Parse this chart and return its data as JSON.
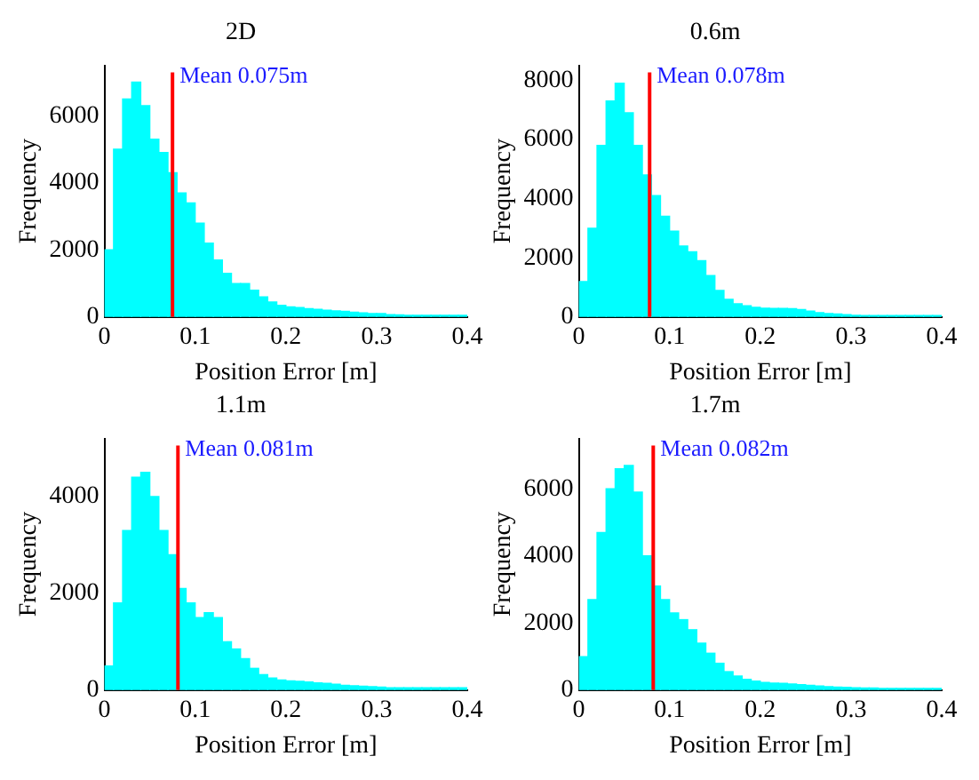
{
  "chart_data": [
    {
      "type": "histogram",
      "title": "2D",
      "xlabel": "Position Error [m]",
      "ylabel": "Frequency",
      "color": "#00ffff",
      "bins": [
        0,
        0.01,
        0.02,
        0.03,
        0.04,
        0.05,
        0.06,
        0.07,
        0.08,
        0.09,
        0.1,
        0.11,
        0.12,
        0.13,
        0.14,
        0.15,
        0.16,
        0.17,
        0.18,
        0.19,
        0.2,
        0.21,
        0.22,
        0.23,
        0.24,
        0.25,
        0.26,
        0.27,
        0.28,
        0.29,
        0.3,
        0.31,
        0.32,
        0.33,
        0.34,
        0.35,
        0.36,
        0.37,
        0.38,
        0.39,
        0.4
      ],
      "values": [
        2000,
        5000,
        6500,
        7000,
        6300,
        5300,
        4900,
        4300,
        3700,
        3400,
        2800,
        2200,
        1700,
        1300,
        1000,
        1000,
        800,
        600,
        450,
        350,
        300,
        280,
        250,
        230,
        200,
        180,
        170,
        140,
        120,
        100,
        100,
        70,
        60,
        50,
        50,
        50,
        50,
        50,
        50,
        50
      ],
      "xlim": [
        0,
        0.4
      ],
      "xticks": [
        0,
        0.1,
        0.2,
        0.3,
        0.4
      ],
      "ylim": [
        0,
        7500
      ],
      "yticks": [
        0,
        2000,
        4000,
        6000
      ],
      "grid": false,
      "legend": false,
      "ref_lines": [
        {
          "axis": "x",
          "value": 0.075,
          "label": "Mean 0.075m",
          "color": "#ff0000"
        }
      ]
    },
    {
      "type": "histogram",
      "title": "0.6m",
      "xlabel": "Position Error [m]",
      "ylabel": "Frequency",
      "color": "#00ffff",
      "bins": [
        0,
        0.01,
        0.02,
        0.03,
        0.04,
        0.05,
        0.06,
        0.07,
        0.08,
        0.09,
        0.1,
        0.11,
        0.12,
        0.13,
        0.14,
        0.15,
        0.16,
        0.17,
        0.18,
        0.19,
        0.2,
        0.21,
        0.22,
        0.23,
        0.24,
        0.25,
        0.26,
        0.27,
        0.28,
        0.29,
        0.3,
        0.31,
        0.32,
        0.33,
        0.34,
        0.35,
        0.36,
        0.37,
        0.38,
        0.39,
        0.4
      ],
      "values": [
        1200,
        3000,
        5800,
        7300,
        7900,
        6900,
        5800,
        4800,
        4100,
        3400,
        2900,
        2400,
        2200,
        1900,
        1400,
        900,
        600,
        450,
        380,
        330,
        300,
        290,
        290,
        280,
        250,
        200,
        150,
        120,
        100,
        80,
        60,
        50,
        50,
        50,
        50,
        50,
        50,
        50,
        50,
        50
      ],
      "xlim": [
        0,
        0.4
      ],
      "xticks": [
        0,
        0.1,
        0.2,
        0.3,
        0.4
      ],
      "ylim": [
        0,
        8500
      ],
      "yticks": [
        0,
        2000,
        4000,
        6000,
        8000
      ],
      "grid": false,
      "legend": false,
      "ref_lines": [
        {
          "axis": "x",
          "value": 0.078,
          "label": "Mean 0.078m",
          "color": "#ff0000"
        }
      ]
    },
    {
      "type": "histogram",
      "title": "1.1m",
      "xlabel": "Position Error [m]",
      "ylabel": "Frequency",
      "color": "#00ffff",
      "bins": [
        0,
        0.01,
        0.02,
        0.03,
        0.04,
        0.05,
        0.06,
        0.07,
        0.08,
        0.09,
        0.1,
        0.11,
        0.12,
        0.13,
        0.14,
        0.15,
        0.16,
        0.17,
        0.18,
        0.19,
        0.2,
        0.21,
        0.22,
        0.23,
        0.24,
        0.25,
        0.26,
        0.27,
        0.28,
        0.29,
        0.3,
        0.31,
        0.32,
        0.33,
        0.34,
        0.35,
        0.36,
        0.37,
        0.38,
        0.39,
        0.4
      ],
      "values": [
        500,
        1800,
        3300,
        4400,
        4500,
        4000,
        3300,
        2800,
        2100,
        1800,
        1500,
        1600,
        1500,
        1000,
        850,
        650,
        450,
        320,
        250,
        210,
        190,
        180,
        170,
        150,
        140,
        120,
        100,
        90,
        80,
        70,
        60,
        50,
        50,
        50,
        50,
        50,
        50,
        50,
        50,
        50
      ],
      "xlim": [
        0,
        0.4
      ],
      "xticks": [
        0,
        0.1,
        0.2,
        0.3,
        0.4
      ],
      "ylim": [
        0,
        5200
      ],
      "yticks": [
        0,
        2000,
        4000
      ],
      "grid": false,
      "legend": false,
      "ref_lines": [
        {
          "axis": "x",
          "value": 0.081,
          "label": "Mean 0.081m",
          "color": "#ff0000"
        }
      ]
    },
    {
      "type": "histogram",
      "title": "1.7m",
      "xlabel": "Position Error [m]",
      "ylabel": "Frequency",
      "color": "#00ffff",
      "bins": [
        0,
        0.01,
        0.02,
        0.03,
        0.04,
        0.05,
        0.06,
        0.07,
        0.08,
        0.09,
        0.1,
        0.11,
        0.12,
        0.13,
        0.14,
        0.15,
        0.16,
        0.17,
        0.18,
        0.19,
        0.2,
        0.21,
        0.22,
        0.23,
        0.24,
        0.25,
        0.26,
        0.27,
        0.28,
        0.29,
        0.3,
        0.31,
        0.32,
        0.33,
        0.34,
        0.35,
        0.36,
        0.37,
        0.38,
        0.39,
        0.4
      ],
      "values": [
        1000,
        2700,
        4700,
        6000,
        6600,
        6700,
        5900,
        4000,
        3100,
        2700,
        2300,
        2100,
        1800,
        1400,
        1100,
        800,
        550,
        420,
        320,
        270,
        230,
        210,
        200,
        180,
        160,
        140,
        120,
        100,
        90,
        80,
        70,
        60,
        60,
        50,
        50,
        50,
        50,
        50,
        50,
        50
      ],
      "xlim": [
        0,
        0.4
      ],
      "xticks": [
        0,
        0.1,
        0.2,
        0.3,
        0.4
      ],
      "ylim": [
        0,
        7500
      ],
      "yticks": [
        0,
        2000,
        4000,
        6000
      ],
      "grid": false,
      "legend": false,
      "ref_lines": [
        {
          "axis": "x",
          "value": 0.082,
          "label": "Mean 0.082m",
          "color": "#ff0000"
        }
      ]
    }
  ]
}
